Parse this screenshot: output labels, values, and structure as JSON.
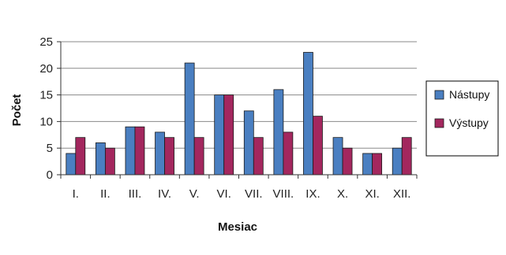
{
  "chart_data": {
    "type": "bar",
    "title": "",
    "xlabel": "Mesiac",
    "ylabel": "Počet",
    "categories": [
      "I.",
      "II.",
      "III.",
      "IV.",
      "V.",
      "VI.",
      "VII.",
      "VIII.",
      "IX.",
      "X.",
      "XI.",
      "XII."
    ],
    "series": [
      {
        "name": "Nástupy",
        "color": "#4a7fc1",
        "values": [
          4,
          6,
          9,
          8,
          21,
          15,
          12,
          16,
          23,
          7,
          4,
          5
        ]
      },
      {
        "name": "Výstupy",
        "color": "#a3275e",
        "values": [
          7,
          5,
          9,
          7,
          7,
          15,
          7,
          8,
          11,
          5,
          4,
          7
        ]
      }
    ],
    "ylim": [
      0,
      25
    ],
    "yticks": [
      0,
      5,
      10,
      15,
      20,
      25
    ],
    "grid": true,
    "legend_position": "right"
  }
}
